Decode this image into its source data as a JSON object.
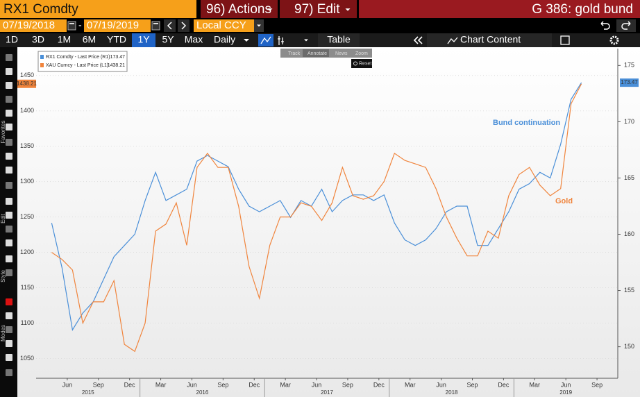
{
  "header": {
    "ticker": "RX1 Comdty",
    "actions": "96) Actions",
    "edit": "97) Edit",
    "function": "G 386: gold bund"
  },
  "toolbar": {
    "start_date": "07/19/2018",
    "separator": "-",
    "end_date": "07/19/2019",
    "currency": "Local CCY",
    "periods": [
      "1D",
      "3D",
      "1M",
      "6M",
      "YTD",
      "1Y",
      "5Y",
      "Max"
    ],
    "selected_period": 5,
    "frequency": "Daily",
    "table": "Table",
    "chart_content": "Chart Content"
  },
  "side_labels": [
    "Favorites",
    "Edit",
    "Style",
    "Modes"
  ],
  "chart_tools": [
    "Track",
    "Annotate",
    "News",
    "Zoom"
  ],
  "reset": "Reset",
  "chart_data": {
    "type": "line",
    "xlim": [
      "2015-03",
      "2019-11"
    ],
    "xticks": [
      {
        "value": "2015-06",
        "label": "Jun"
      },
      {
        "value": "2015-09",
        "label": "Sep"
      },
      {
        "value": "2015-12",
        "label": "Dec"
      },
      {
        "value": "2016-03",
        "label": "Mar"
      },
      {
        "value": "2016-06",
        "label": "Jun"
      },
      {
        "value": "2016-09",
        "label": "Sep"
      },
      {
        "value": "2016-12",
        "label": "Dec"
      },
      {
        "value": "2017-03",
        "label": "Mar"
      },
      {
        "value": "2017-06",
        "label": "Jun"
      },
      {
        "value": "2017-09",
        "label": "Sep"
      },
      {
        "value": "2017-12",
        "label": "Dec"
      },
      {
        "value": "2018-03",
        "label": "Mar"
      },
      {
        "value": "2018-06",
        "label": "Jun"
      },
      {
        "value": "2018-09",
        "label": "Sep"
      },
      {
        "value": "2018-12",
        "label": "Dec"
      },
      {
        "value": "2019-03",
        "label": "Mar"
      },
      {
        "value": "2019-06",
        "label": "Jun"
      },
      {
        "value": "2019-09",
        "label": "Sep"
      }
    ],
    "x_years": [
      2015,
      2016,
      2017,
      2018,
      2019
    ],
    "ylim": [
      1022,
      1488
    ],
    "yticks": [
      1050,
      1100,
      1150,
      1200,
      1250,
      1300,
      1350,
      1400,
      1450
    ],
    "y2lim": [
      147.2,
      176.5
    ],
    "y2ticks": [
      150,
      155,
      160,
      165,
      170,
      175
    ],
    "grid": true,
    "x": [
      "2015-04",
      "2015-05",
      "2015-06",
      "2015-07",
      "2015-08",
      "2015-09",
      "2015-10",
      "2015-11",
      "2015-12",
      "2016-01",
      "2016-02",
      "2016-03",
      "2016-04",
      "2016-05",
      "2016-06",
      "2016-07",
      "2016-08",
      "2016-09",
      "2016-10",
      "2016-11",
      "2016-12",
      "2017-01",
      "2017-02",
      "2017-03",
      "2017-04",
      "2017-05",
      "2017-06",
      "2017-07",
      "2017-08",
      "2017-09",
      "2017-10",
      "2017-11",
      "2017-12",
      "2018-01",
      "2018-02",
      "2018-03",
      "2018-04",
      "2018-05",
      "2018-06",
      "2018-07",
      "2018-08",
      "2018-09",
      "2018-10",
      "2018-11",
      "2018-12",
      "2019-01",
      "2019-02",
      "2019-03",
      "2019-04",
      "2019-05",
      "2019-06",
      "2019-07"
    ],
    "series": [
      {
        "name": "RX1 Comdty - Last Price (R1)",
        "color": "#4a8fd8",
        "axis": "y2",
        "values": [
          161,
          157,
          151.5,
          153,
          154,
          156,
          158,
          159,
          160,
          163,
          165.5,
          163,
          163.5,
          164,
          166.5,
          167,
          166.5,
          166,
          164,
          162.5,
          162,
          162.5,
          163,
          161.5,
          163,
          162.5,
          164,
          162,
          163,
          163.5,
          163.5,
          163,
          163.5,
          161,
          159.5,
          159,
          159.5,
          160.5,
          162,
          162.5,
          162.5,
          159,
          159,
          160.5,
          162,
          164,
          164.5,
          165.5,
          165,
          168,
          172,
          173.47
        ]
      },
      {
        "name": "XAU Curncy - Last Price (L1)",
        "color": "#f0843c",
        "axis": "y",
        "values": [
          1200,
          1190,
          1175,
          1100,
          1130,
          1130,
          1160,
          1070,
          1060,
          1100,
          1230,
          1240,
          1270,
          1210,
          1320,
          1340,
          1320,
          1320,
          1265,
          1180,
          1135,
          1210,
          1250,
          1250,
          1270,
          1265,
          1245,
          1270,
          1320,
          1280,
          1275,
          1280,
          1300,
          1340,
          1330,
          1325,
          1320,
          1290,
          1250,
          1220,
          1195,
          1195,
          1230,
          1220,
          1280,
          1310,
          1320,
          1295,
          1280,
          1290,
          1410,
          1438.21
        ]
      }
    ],
    "annotations": [
      {
        "text": "Bund continuation",
        "color": "#4a8fd8"
      },
      {
        "text": "Gold",
        "color": "#f0843c"
      }
    ]
  }
}
